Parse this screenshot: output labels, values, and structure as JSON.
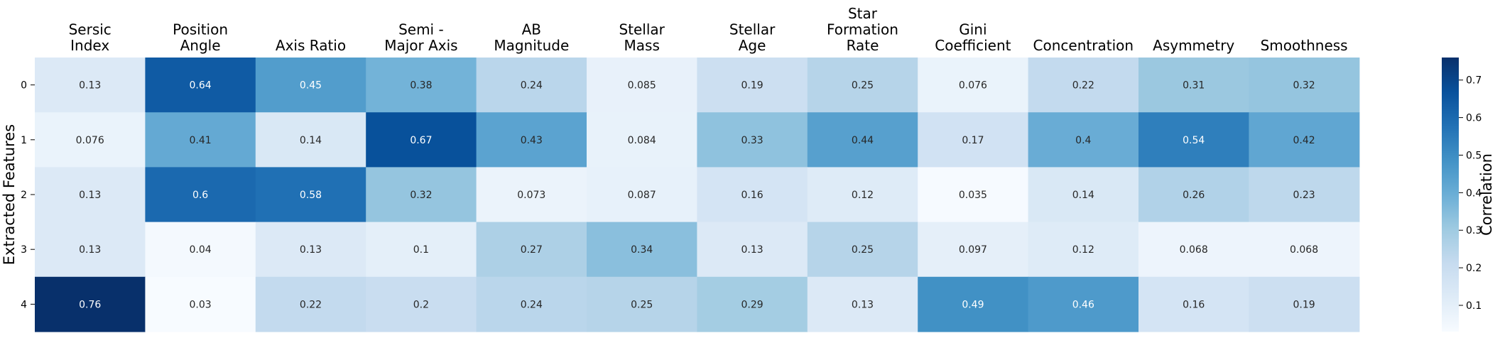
{
  "chart_data": {
    "type": "heatmap",
    "title": "",
    "xlabel": "",
    "ylabel": "Extracted Features",
    "colorbar_label": "Correlation",
    "colormap": "Blues",
    "vmin": 0.03,
    "vmax": 0.76,
    "colorbar_ticks": [
      "0.1",
      "0.2",
      "0.3",
      "0.4",
      "0.5",
      "0.6",
      "0.7"
    ],
    "columns": [
      [
        "Sersic",
        "Index"
      ],
      [
        "Position",
        "Angle"
      ],
      [
        "Axis Ratio"
      ],
      [
        "Semi -",
        "Major Axis"
      ],
      [
        "AB",
        "Magnitude"
      ],
      [
        "Stellar",
        "Mass"
      ],
      [
        "Stellar",
        "Age"
      ],
      [
        "Star",
        "Formation",
        "Rate"
      ],
      [
        "Gini",
        "Coefficient"
      ],
      [
        "Concentration"
      ],
      [
        "Asymmetry"
      ],
      [
        "Smoothness"
      ]
    ],
    "rows": [
      "0",
      "1",
      "2",
      "3",
      "4"
    ],
    "values": [
      [
        0.13,
        0.64,
        0.45,
        0.38,
        0.24,
        0.085,
        0.19,
        0.25,
        0.076,
        0.22,
        0.31,
        0.32
      ],
      [
        0.076,
        0.41,
        0.14,
        0.67,
        0.43,
        0.084,
        0.33,
        0.44,
        0.17,
        0.4,
        0.54,
        0.42
      ],
      [
        0.13,
        0.6,
        0.58,
        0.32,
        0.073,
        0.087,
        0.16,
        0.12,
        0.035,
        0.14,
        0.26,
        0.23
      ],
      [
        0.13,
        0.04,
        0.13,
        0.1,
        0.27,
        0.34,
        0.13,
        0.25,
        0.097,
        0.12,
        0.068,
        0.068
      ],
      [
        0.76,
        0.03,
        0.22,
        0.2,
        0.24,
        0.25,
        0.29,
        0.13,
        0.49,
        0.46,
        0.16,
        0.19
      ]
    ]
  }
}
